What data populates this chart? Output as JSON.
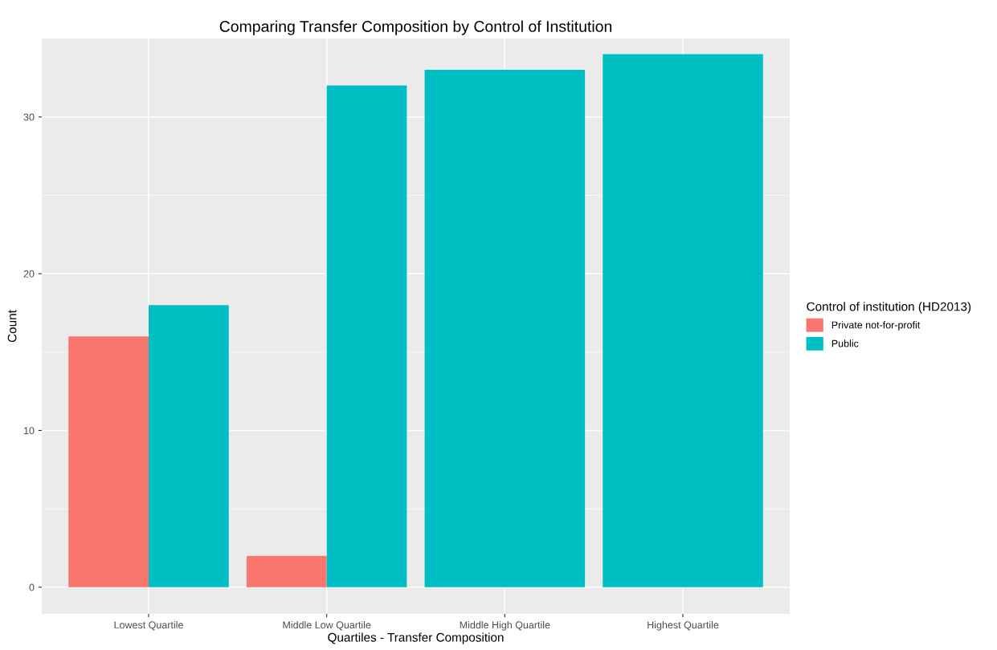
{
  "chart_data": {
    "type": "bar",
    "title": "Comparing Transfer Composition by Control of Institution",
    "xlabel": "Quartiles - Transfer Composition",
    "ylabel": "Count",
    "legend_title": "Control of institution (HD2013)",
    "categories": [
      "Lowest Quartile",
      "Middle Low Quartile",
      "Middle High Quartile",
      "Highest Quartile"
    ],
    "series": [
      {
        "name": "Private not-for-profit",
        "color": "#f8766d",
        "values": [
          16,
          2,
          null,
          null
        ]
      },
      {
        "name": "Public",
        "color": "#00bfc4",
        "values": [
          18,
          32,
          33,
          34
        ]
      }
    ],
    "ylim": [
      -1.7,
      35.0
    ],
    "yticks": [
      0,
      10,
      20,
      30
    ],
    "grid": true,
    "legend": "right"
  }
}
